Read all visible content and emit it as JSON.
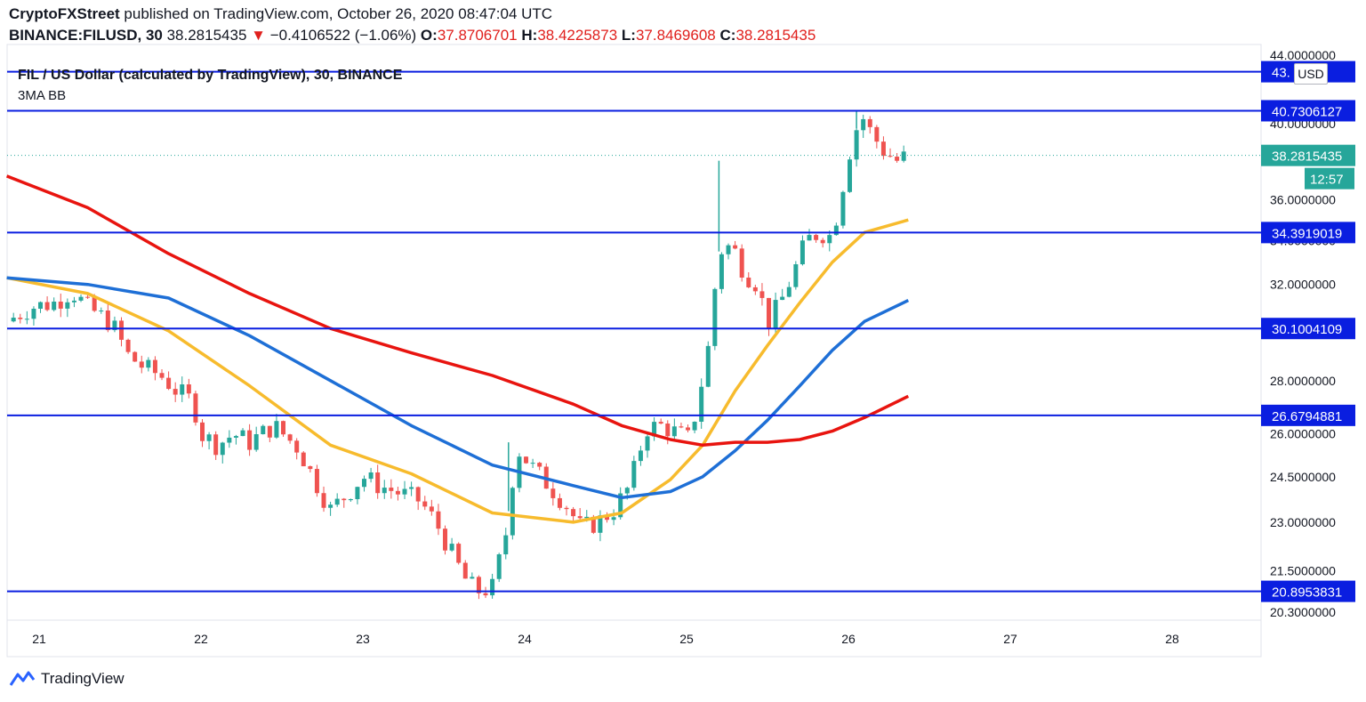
{
  "header": {
    "publisher": "CryptoFXStreet",
    "published_text": "published on TradingView.com, October 26, 2020 08:47:04 UTC",
    "symbol": "BINANCE:FILUSD, 30",
    "last": "38.2815435",
    "change_arrow": "▼",
    "change": "−0.4106522 (−1.06%)",
    "o_label": "O:",
    "o_value": "37.8706701",
    "h_label": "H:",
    "h_value": "38.4225873",
    "l_label": "L:",
    "l_value": "37.8469608",
    "c_label": "C:",
    "c_value": "38.2815435"
  },
  "legend": {
    "title": "FIL / US Dollar (calculated by TradingView), 30, BINANCE",
    "indicator": "3MA BB"
  },
  "currency_button": "USD",
  "logo_text": "TradingView",
  "colors": {
    "hline": "#0a1ee0",
    "up": "#26a69a",
    "down": "#ef5350",
    "ma_fast": "#f7bb2d",
    "ma_mid": "#1e6fd6",
    "ma_slow": "#e8140f",
    "axis_text": "#131722",
    "last_price_bg": "#26a69a"
  },
  "chart_data": {
    "type": "candlestick",
    "x_ticks": [
      "21",
      "22",
      "23",
      "24",
      "25",
      "26",
      "27",
      "28"
    ],
    "y_ticks": [
      "44.0000000",
      "40.0000000",
      "36.0000000",
      "34.0000000",
      "32.0000000",
      "28.0000000",
      "26.0000000",
      "24.5000000",
      "23.0000000",
      "21.5000000",
      "20.3000000"
    ],
    "y_axis_scale": "logarithmic",
    "horizontal_levels": [
      {
        "value": 43.0,
        "label": "43.   89"
      },
      {
        "value": 40.7306127,
        "label": "40.7306127"
      },
      {
        "value": 34.3919019,
        "label": "34.3919019"
      },
      {
        "value": 30.1004109,
        "label": "30.1004109"
      },
      {
        "value": 26.6794881,
        "label": "26.6794881"
      },
      {
        "value": 20.8953831,
        "label": "20.8953831"
      }
    ],
    "last_price": {
      "value": 38.2815435,
      "label": "38.2815435",
      "countdown": "12:57"
    },
    "moving_averages": [
      {
        "color_key": "ma_fast",
        "x": [
          20.8,
          21.3,
          21.8,
          22.3,
          22.8,
          23.3,
          23.8,
          24.3,
          24.6,
          24.9,
          25.1,
          25.3,
          25.5,
          25.7,
          25.9,
          26.1,
          26.37
        ],
        "y": [
          32.3,
          31.6,
          30.0,
          27.8,
          25.6,
          24.6,
          23.3,
          23.0,
          23.3,
          24.4,
          25.6,
          27.6,
          29.4,
          31.2,
          33.0,
          34.4,
          35.0
        ]
      },
      {
        "color_key": "ma_mid",
        "x": [
          20.8,
          21.3,
          21.8,
          22.3,
          22.8,
          23.3,
          23.8,
          24.3,
          24.6,
          24.9,
          25.1,
          25.3,
          25.5,
          25.7,
          25.9,
          26.1,
          26.37
        ],
        "y": [
          32.3,
          32.0,
          31.4,
          29.8,
          28.0,
          26.3,
          24.9,
          24.2,
          23.8,
          24.0,
          24.5,
          25.4,
          26.5,
          27.8,
          29.2,
          30.4,
          31.3
        ]
      },
      {
        "color_key": "ma_slow",
        "x": [
          20.8,
          21.3,
          21.8,
          22.3,
          22.8,
          23.3,
          23.8,
          24.3,
          24.6,
          24.9,
          25.1,
          25.3,
          25.5,
          25.7,
          25.9,
          26.1,
          26.37
        ],
        "y": [
          37.2,
          35.6,
          33.4,
          31.6,
          30.1,
          29.1,
          28.2,
          27.1,
          26.3,
          25.8,
          25.6,
          25.7,
          25.7,
          25.8,
          26.1,
          26.6,
          27.4
        ]
      }
    ],
    "close_path": {
      "x": [
        20.8,
        20.95,
        21.1,
        21.2,
        21.3,
        21.45,
        21.55,
        21.65,
        21.75,
        21.85,
        21.95,
        22.0,
        22.1,
        22.2,
        22.3,
        22.45,
        22.6,
        22.7,
        22.8,
        22.9,
        23.0,
        23.1,
        23.2,
        23.35,
        23.45,
        23.55,
        23.65,
        23.72,
        23.8,
        23.88,
        23.95,
        24.05,
        24.15,
        24.25,
        24.35,
        24.45,
        24.55,
        24.65,
        24.75,
        24.85,
        24.95,
        25.02,
        25.08,
        25.14,
        25.2,
        25.28,
        25.36,
        25.44,
        25.5,
        25.58,
        25.66,
        25.74,
        25.82,
        25.9,
        25.96,
        26.02,
        26.08,
        26.14,
        26.22,
        26.3,
        26.37
      ],
      "y": [
        30.4,
        31.0,
        31.2,
        31.7,
        31.0,
        30.3,
        29.0,
        28.5,
        28.2,
        27.6,
        27.2,
        26.0,
        25.6,
        26.0,
        25.7,
        26.3,
        25.5,
        24.4,
        23.4,
        23.9,
        24.5,
        24.2,
        24.0,
        23.7,
        23.0,
        22.0,
        21.1,
        20.9,
        21.0,
        22.5,
        25.5,
        24.8,
        24.2,
        23.6,
        22.8,
        23.0,
        23.4,
        24.2,
        26.2,
        26.3,
        26.0,
        25.8,
        27.5,
        29.5,
        33.5,
        33.8,
        32.5,
        32.0,
        30.3,
        31.2,
        32.5,
        34.0,
        34.4,
        34.2,
        36.5,
        39.0,
        40.5,
        39.5,
        38.5,
        38.0,
        38.28
      ]
    },
    "spikes": [
      {
        "x": 25.2,
        "high": 38.0
      },
      {
        "x": 23.9,
        "high": 25.7
      },
      {
        "x": 26.05,
        "high": 40.73
      }
    ]
  }
}
